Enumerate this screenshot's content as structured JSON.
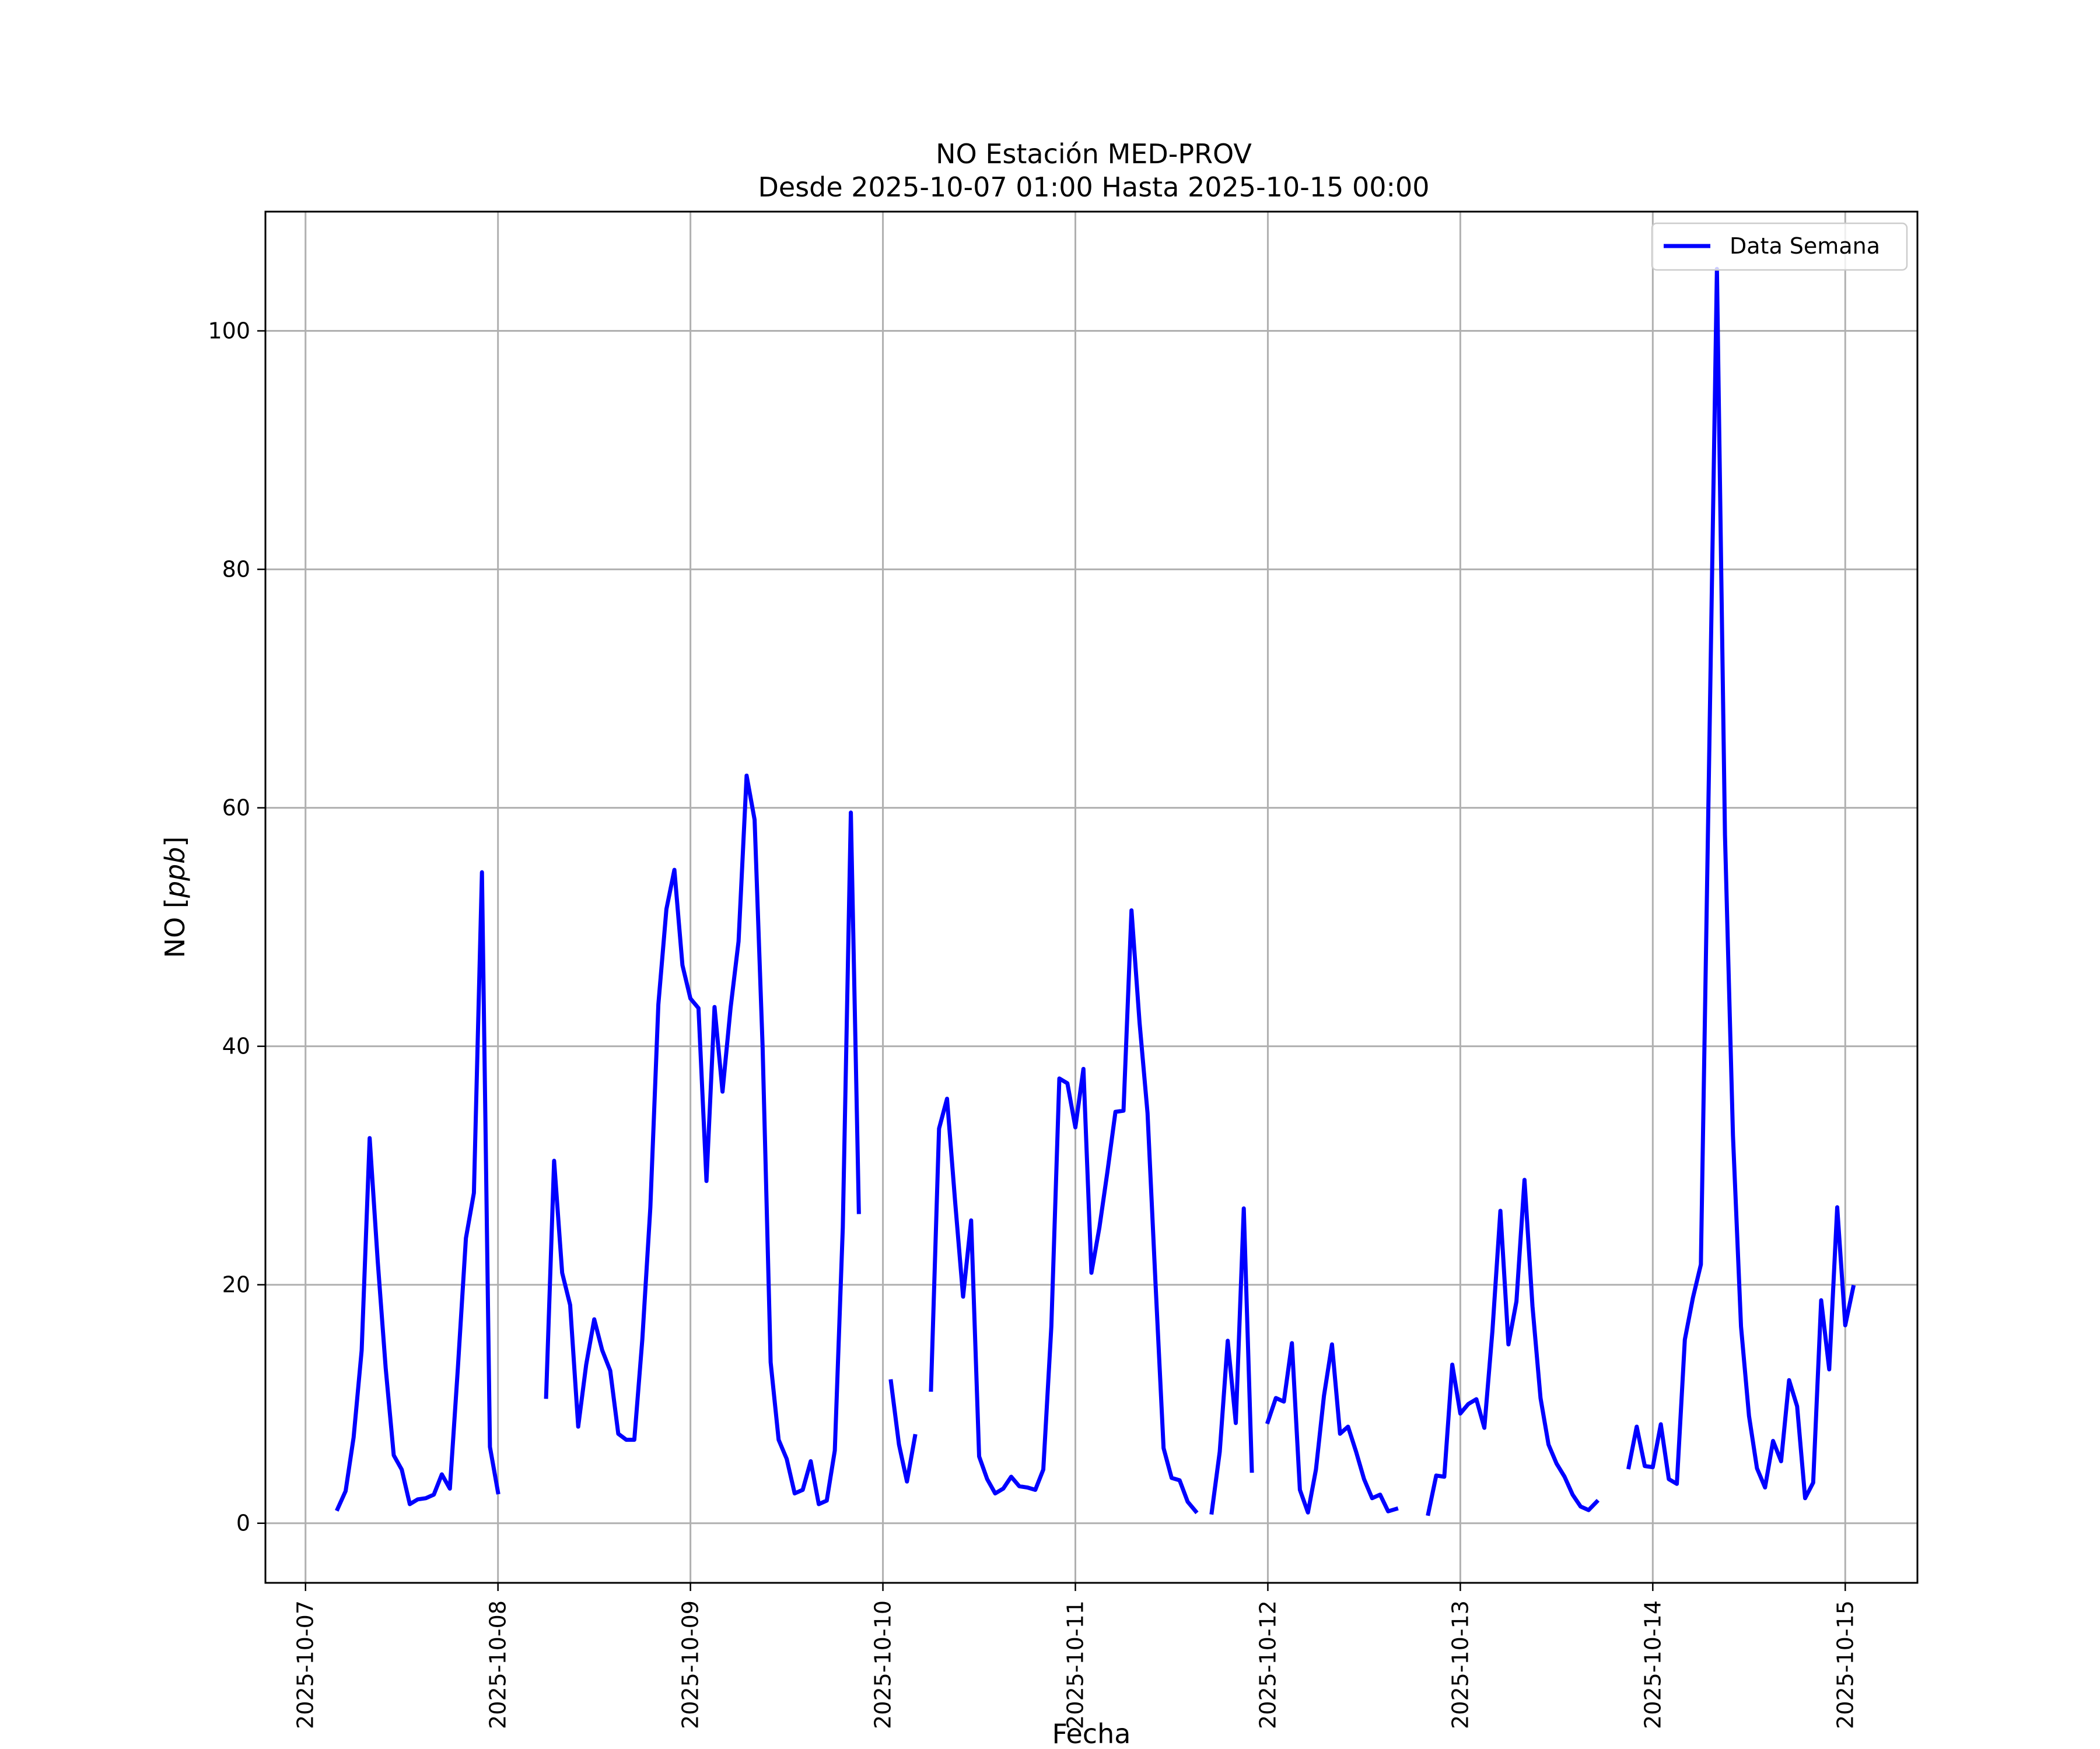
{
  "chart_data": {
    "type": "line",
    "title": "NO Estación MED-PROV",
    "subtitle": "Desde 2025-10-07 01:00 Hasta 2025-10-15 00:00",
    "xlabel": "Fecha",
    "ylabel": "NO [ppb]",
    "ylabel_prefix": "NO",
    "ylabel_unit": "ppb",
    "x_ticks": [
      "2025-10-07",
      "2025-10-08",
      "2025-10-09",
      "2025-10-10",
      "2025-10-11",
      "2025-10-12",
      "2025-10-13",
      "2025-10-14",
      "2025-10-15"
    ],
    "y_ticks": [
      0,
      20,
      40,
      60,
      80,
      100
    ],
    "xlim": [
      "2025-10-06 19:00",
      "2025-10-15 09:00"
    ],
    "ylim": [
      -5,
      110
    ],
    "grid": true,
    "legend": {
      "position": "top-right",
      "entries": [
        "Data Semana"
      ]
    },
    "series": [
      {
        "name": "Data Semana",
        "color": "#0000ff",
        "points": [
          [
            "2025-10-07 04:00",
            1.2
          ],
          [
            "2025-10-07 05:00",
            2.7
          ],
          [
            "2025-10-07 06:00",
            7.2
          ],
          [
            "2025-10-07 07:00",
            14.5
          ],
          [
            "2025-10-07 08:00",
            32.3
          ],
          [
            "2025-10-07 09:00",
            22.0
          ],
          [
            "2025-10-07 10:00",
            13.0
          ],
          [
            "2025-10-07 11:00",
            5.7
          ],
          [
            "2025-10-07 12:00",
            4.5
          ],
          [
            "2025-10-07 13:00",
            1.6
          ],
          [
            "2025-10-07 14:00",
            2.0
          ],
          [
            "2025-10-07 15:00",
            2.1
          ],
          [
            "2025-10-07 16:00",
            2.4
          ],
          [
            "2025-10-07 17:00",
            4.1
          ],
          [
            "2025-10-07 18:00",
            2.9
          ],
          [
            "2025-10-07 19:00",
            13.0
          ],
          [
            "2025-10-07 20:00",
            23.9
          ],
          [
            "2025-10-07 21:00",
            27.7
          ],
          [
            "2025-10-07 22:00",
            54.6
          ],
          [
            "2025-10-07 23:00",
            6.4
          ],
          [
            "2025-10-08 00:00",
            2.6
          ],
          [
            "2025-10-08 01:00",
            null
          ],
          [
            "2025-10-08 06:00",
            null
          ],
          [
            "2025-10-08 06:00",
            10.6
          ],
          [
            "2025-10-08 07:00",
            30.4
          ],
          [
            "2025-10-08 08:00",
            21.0
          ],
          [
            "2025-10-08 09:00",
            18.3
          ],
          [
            "2025-10-08 10:00",
            8.1
          ],
          [
            "2025-10-08 11:00",
            13.3
          ],
          [
            "2025-10-08 12:00",
            17.1
          ],
          [
            "2025-10-08 13:00",
            14.5
          ],
          [
            "2025-10-08 14:00",
            12.8
          ],
          [
            "2025-10-08 15:00",
            7.5
          ],
          [
            "2025-10-08 16:00",
            7.0
          ],
          [
            "2025-10-08 17:00",
            7.0
          ],
          [
            "2025-10-08 18:00",
            15.4
          ],
          [
            "2025-10-08 19:00",
            26.5
          ],
          [
            "2025-10-08 20:00",
            43.5
          ],
          [
            "2025-10-08 21:00",
            51.5
          ],
          [
            "2025-10-08 22:00",
            54.8
          ],
          [
            "2025-10-08 23:00",
            46.8
          ],
          [
            "2025-10-09 00:00",
            44.0
          ],
          [
            "2025-10-09 01:00",
            43.2
          ],
          [
            "2025-10-09 02:00",
            28.7
          ],
          [
            "2025-10-09 03:00",
            43.3
          ],
          [
            "2025-10-09 04:00",
            36.2
          ],
          [
            "2025-10-09 05:00",
            43.2
          ],
          [
            "2025-10-09 06:00",
            48.8
          ],
          [
            "2025-10-09 07:00",
            62.7
          ],
          [
            "2025-10-09 08:00",
            59.0
          ],
          [
            "2025-10-09 09:00",
            40.0
          ],
          [
            "2025-10-09 10:00",
            13.5
          ],
          [
            "2025-10-09 11:00",
            7.0
          ],
          [
            "2025-10-09 12:00",
            5.4
          ],
          [
            "2025-10-09 13:00",
            2.5
          ],
          [
            "2025-10-09 14:00",
            2.8
          ],
          [
            "2025-10-09 15:00",
            5.2
          ],
          [
            "2025-10-09 16:00",
            1.6
          ],
          [
            "2025-10-09 17:00",
            1.9
          ],
          [
            "2025-10-09 18:00",
            6.1
          ],
          [
            "2025-10-09 19:00",
            24.8
          ],
          [
            "2025-10-09 20:00",
            59.6
          ],
          [
            "2025-10-09 21:00",
            26.1
          ],
          [
            "2025-10-09 22:00",
            null
          ],
          [
            "2025-10-10 01:00",
            11.9
          ],
          [
            "2025-10-10 02:00",
            6.6
          ],
          [
            "2025-10-10 03:00",
            3.5
          ],
          [
            "2025-10-10 04:00",
            7.3
          ],
          [
            "2025-10-10 05:00",
            null
          ],
          [
            "2025-10-10 06:00",
            11.2
          ],
          [
            "2025-10-10 07:00",
            33.1
          ],
          [
            "2025-10-10 08:00",
            35.6
          ],
          [
            "2025-10-10 09:00",
            27.0
          ],
          [
            "2025-10-10 10:00",
            19.0
          ],
          [
            "2025-10-10 11:00",
            25.4
          ],
          [
            "2025-10-10 12:00",
            5.6
          ],
          [
            "2025-10-10 13:00",
            3.7
          ],
          [
            "2025-10-10 14:00",
            2.5
          ],
          [
            "2025-10-10 15:00",
            2.9
          ],
          [
            "2025-10-10 16:00",
            3.9
          ],
          [
            "2025-10-10 17:00",
            3.1
          ],
          [
            "2025-10-10 18:00",
            3.0
          ],
          [
            "2025-10-10 19:00",
            2.8
          ],
          [
            "2025-10-10 20:00",
            4.5
          ],
          [
            "2025-10-10 21:00",
            16.5
          ],
          [
            "2025-10-10 22:00",
            37.3
          ],
          [
            "2025-10-10 23:00",
            36.9
          ],
          [
            "2025-10-11 00:00",
            33.2
          ],
          [
            "2025-10-11 01:00",
            38.1
          ],
          [
            "2025-10-11 02:00",
            21.0
          ],
          [
            "2025-10-11 03:00",
            24.8
          ],
          [
            "2025-10-11 04:00",
            29.5
          ],
          [
            "2025-10-11 05:00",
            34.5
          ],
          [
            "2025-10-11 06:00",
            34.6
          ],
          [
            "2025-10-11 07:00",
            51.4
          ],
          [
            "2025-10-11 08:00",
            42.0
          ],
          [
            "2025-10-11 09:00",
            34.4
          ],
          [
            "2025-10-11 10:00",
            20.0
          ],
          [
            "2025-10-11 11:00",
            6.3
          ],
          [
            "2025-10-11 12:00",
            3.8
          ],
          [
            "2025-10-11 13:00",
            3.6
          ],
          [
            "2025-10-11 14:00",
            1.8
          ],
          [
            "2025-10-11 15:00",
            1.0
          ],
          [
            "2025-10-11 16:00",
            null
          ],
          [
            "2025-10-11 17:00",
            0.9
          ],
          [
            "2025-10-11 18:00",
            6.0
          ],
          [
            "2025-10-11 19:00",
            15.3
          ],
          [
            "2025-10-11 20:00",
            8.4
          ],
          [
            "2025-10-11 21:00",
            26.4
          ],
          [
            "2025-10-11 22:00",
            4.4
          ],
          [
            "2025-10-11 23:00",
            null
          ],
          [
            "2025-10-12 00:00",
            8.5
          ],
          [
            "2025-10-12 01:00",
            10.5
          ],
          [
            "2025-10-12 02:00",
            10.2
          ],
          [
            "2025-10-12 03:00",
            15.1
          ],
          [
            "2025-10-12 04:00",
            2.8
          ],
          [
            "2025-10-12 05:00",
            0.9
          ],
          [
            "2025-10-12 06:00",
            4.5
          ],
          [
            "2025-10-12 07:00",
            10.7
          ],
          [
            "2025-10-12 08:00",
            15.0
          ],
          [
            "2025-10-12 09:00",
            7.5
          ],
          [
            "2025-10-12 10:00",
            8.1
          ],
          [
            "2025-10-12 11:00",
            6.0
          ],
          [
            "2025-10-12 12:00",
            3.7
          ],
          [
            "2025-10-12 13:00",
            2.1
          ],
          [
            "2025-10-12 14:00",
            2.4
          ],
          [
            "2025-10-12 15:00",
            1.0
          ],
          [
            "2025-10-12 16:00",
            1.2
          ],
          [
            "2025-10-12 17:00",
            null
          ],
          [
            "2025-10-12 20:00",
            0.8
          ],
          [
            "2025-10-12 21:00",
            4.0
          ],
          [
            "2025-10-12 22:00",
            3.9
          ],
          [
            "2025-10-12 23:00",
            13.3
          ],
          [
            "2025-10-13 00:00",
            9.2
          ],
          [
            "2025-10-13 01:00",
            10.0
          ],
          [
            "2025-10-13 02:00",
            10.4
          ],
          [
            "2025-10-13 03:00",
            8.0
          ],
          [
            "2025-10-13 04:00",
            16.1
          ],
          [
            "2025-10-13 05:00",
            26.2
          ],
          [
            "2025-10-13 06:00",
            15.0
          ],
          [
            "2025-10-13 07:00",
            18.6
          ],
          [
            "2025-10-13 08:00",
            28.8
          ],
          [
            "2025-10-13 09:00",
            18.2
          ],
          [
            "2025-10-13 10:00",
            10.5
          ],
          [
            "2025-10-13 11:00",
            6.6
          ],
          [
            "2025-10-13 12:00",
            5.0
          ],
          [
            "2025-10-13 13:00",
            3.9
          ],
          [
            "2025-10-13 14:00",
            2.4
          ],
          [
            "2025-10-13 15:00",
            1.4
          ],
          [
            "2025-10-13 16:00",
            1.1
          ],
          [
            "2025-10-13 17:00",
            1.8
          ],
          [
            "2025-10-13 18:00",
            null
          ],
          [
            "2025-10-13 21:00",
            4.7
          ],
          [
            "2025-10-13 22:00",
            8.1
          ],
          [
            "2025-10-13 23:00",
            4.8
          ],
          [
            "2025-10-14 00:00",
            4.7
          ],
          [
            "2025-10-14 01:00",
            8.3
          ],
          [
            "2025-10-14 02:00",
            3.7
          ],
          [
            "2025-10-14 03:00",
            3.3
          ],
          [
            "2025-10-14 04:00",
            15.4
          ],
          [
            "2025-10-14 05:00",
            18.9
          ],
          [
            "2025-10-14 06:00",
            21.7
          ],
          [
            "2025-10-14 07:00",
            63.0
          ],
          [
            "2025-10-14 08:00",
            105.2
          ],
          [
            "2025-10-14 09:00",
            57.7
          ],
          [
            "2025-10-14 10:00",
            32.5
          ],
          [
            "2025-10-14 11:00",
            16.5
          ],
          [
            "2025-10-14 12:00",
            9.0
          ],
          [
            "2025-10-14 13:00",
            4.6
          ],
          [
            "2025-10-14 14:00",
            3.0
          ],
          [
            "2025-10-14 15:00",
            6.9
          ],
          [
            "2025-10-14 16:00",
            5.2
          ],
          [
            "2025-10-14 17:00",
            12.0
          ],
          [
            "2025-10-14 18:00",
            9.8
          ],
          [
            "2025-10-14 19:00",
            2.1
          ],
          [
            "2025-10-14 20:00",
            3.4
          ],
          [
            "2025-10-14 21:00",
            18.7
          ],
          [
            "2025-10-14 22:00",
            12.9
          ],
          [
            "2025-10-14 23:00",
            26.5
          ],
          [
            "2025-10-15 00:00",
            16.6
          ],
          [
            "2025-10-15 01:00",
            19.8
          ]
        ]
      }
    ]
  }
}
